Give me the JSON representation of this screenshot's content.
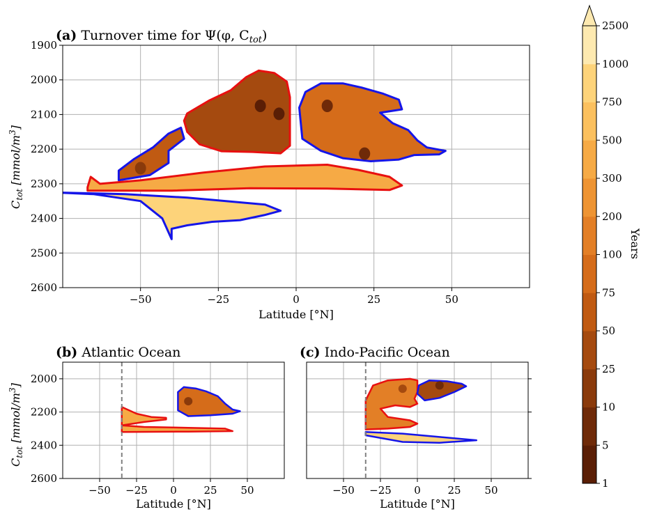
{
  "colors": {
    "c1": "#5a1e05",
    "c2": "#6f2a08",
    "c3": "#8a3a0b",
    "c4": "#a54a0f",
    "c5": "#c05a12",
    "c6": "#d56c1a",
    "c7": "#e37f26",
    "c8": "#ee9433",
    "c9": "#f6aa45",
    "c10": "#fbc05e",
    "c11": "#fdd37a",
    "c12": "#fde9b0",
    "blue": "#1515e8",
    "red": "#e81010",
    "dash": "#808080"
  },
  "colorbar": {
    "label": "Years",
    "ticks": [
      "1",
      "5",
      "10",
      "25",
      "50",
      "75",
      "100",
      "200",
      "300",
      "500",
      "750",
      "1000",
      "2500"
    ]
  },
  "chart_data": [
    {
      "type": "heatmap",
      "panel": "a",
      "title_prefix": "(a)",
      "title_text": "Turnover time for Ψ(φ, C",
      "title_sub": "tot",
      "title_end": ")",
      "xlabel": "Latitude [°N]",
      "ylabel_main": "C",
      "ylabel_sub": "tot",
      "ylabel_unit": " [mmol/m",
      "ylabel_sup": "3",
      "ylabel_end": "]",
      "xlim": [
        -75,
        75
      ],
      "ylim": [
        1900,
        2600
      ],
      "xticks": [
        -50,
        -25,
        0,
        25,
        50
      ],
      "xtick_labels": [
        "−50",
        "−25",
        "0",
        "25",
        "50"
      ],
      "yticks": [
        1900,
        2000,
        2100,
        2200,
        2300,
        2400,
        2500,
        2600
      ],
      "ytick_labels": [
        "1900",
        "2000",
        "2100",
        "2200",
        "2300",
        "2400",
        "2500",
        "2600"
      ],
      "regions": [
        {
          "name": "southern-hemisphere-cell",
          "outline": "red",
          "level": 4,
          "boundary": [
            [
              -35,
              2097
            ],
            [
              -28,
              2060
            ],
            [
              -21,
              2030
            ],
            [
              -16,
              1992
            ],
            [
              -12,
              1973
            ],
            [
              -7,
              1980
            ],
            [
              -3,
              2005
            ],
            [
              -2,
              2050
            ],
            [
              -2,
              2130
            ],
            [
              -2,
              2190
            ],
            [
              -5,
              2212
            ],
            [
              -14,
              2208
            ],
            [
              -24,
              2206
            ],
            [
              -31,
              2186
            ],
            [
              -35,
              2150
            ],
            [
              -36,
              2118
            ]
          ],
          "cores": [
            {
              "lat": -11.5,
              "c": 2075,
              "level": 1
            },
            {
              "lat": -5.5,
              "c": 2098,
              "level": 1
            }
          ]
        },
        {
          "name": "northern-hemisphere-cell",
          "outline": "blue",
          "level": 6,
          "boundary": [
            [
              1,
              2080
            ],
            [
              3,
              2035
            ],
            [
              8,
              2010
            ],
            [
              15,
              2010
            ],
            [
              21,
              2022
            ],
            [
              28,
              2040
            ],
            [
              33,
              2057
            ],
            [
              34,
              2085
            ],
            [
              27,
              2095
            ],
            [
              31,
              2125
            ],
            [
              36,
              2145
            ],
            [
              39,
              2175
            ],
            [
              42,
              2195
            ],
            [
              48,
              2205
            ],
            [
              46,
              2215
            ],
            [
              38,
              2217
            ],
            [
              33,
              2230
            ],
            [
              24,
              2235
            ],
            [
              15,
              2226
            ],
            [
              8,
              2205
            ],
            [
              2,
              2170
            ]
          ],
          "cores": [
            {
              "lat": 10,
              "c": 2075,
              "level": 2
            },
            {
              "lat": 22,
              "c": 2213,
              "level": 2
            }
          ]
        },
        {
          "name": "southern-intermediate-cell",
          "outline": "blue",
          "level": 5,
          "boundary": [
            [
              -57,
              2262
            ],
            [
              -52,
              2228
            ],
            [
              -46,
              2195
            ],
            [
              -41,
              2155
            ],
            [
              -37,
              2138
            ],
            [
              -36,
              2170
            ],
            [
              -41,
              2205
            ],
            [
              -41,
              2240
            ],
            [
              -47,
              2275
            ],
            [
              -57,
              2290
            ]
          ],
          "cores": [
            {
              "lat": -50,
              "c": 2255,
              "level": 3
            }
          ]
        },
        {
          "name": "subtropical-shallow-cell",
          "outline": "red",
          "level": 9,
          "boundary": [
            [
              -67,
              2310
            ],
            [
              -66,
              2280
            ],
            [
              -63,
              2300
            ],
            [
              -50,
              2290
            ],
            [
              -30,
              2268
            ],
            [
              -10,
              2250
            ],
            [
              10,
              2245
            ],
            [
              20,
              2260
            ],
            [
              30,
              2280
            ],
            [
              34,
              2305
            ],
            [
              30,
              2318
            ],
            [
              10,
              2314
            ],
            [
              -15,
              2313
            ],
            [
              -40,
              2320
            ],
            [
              -67,
              2320
            ]
          ]
        },
        {
          "name": "deep-return-cell",
          "outline": "blue",
          "level": 11,
          "boundary": [
            [
              -78,
              2325
            ],
            [
              -55,
              2330
            ],
            [
              -35,
              2340
            ],
            [
              -10,
              2360
            ],
            [
              -5,
              2378
            ],
            [
              -10,
              2390
            ],
            [
              -18,
              2405
            ],
            [
              -27,
              2410
            ],
            [
              -35,
              2420
            ],
            [
              -40,
              2430
            ],
            [
              -40,
              2460
            ],
            [
              -43,
              2400
            ],
            [
              -50,
              2350
            ],
            [
              -65,
              2330
            ]
          ]
        }
      ]
    },
    {
      "type": "heatmap",
      "panel": "b",
      "title_prefix": "(b)",
      "title_text": "Atlantic Ocean",
      "xlabel": "Latitude [°N]",
      "ylabel_main": "C",
      "ylabel_sub": "tot",
      "ylabel_unit": " [mmol/m",
      "ylabel_sup": "3",
      "ylabel_end": "]",
      "xlim": [
        -75,
        75
      ],
      "ylim": [
        1900,
        2600
      ],
      "xticks": [
        -50,
        -25,
        0,
        25,
        50
      ],
      "xtick_labels": [
        "−50",
        "−25",
        "0",
        "25",
        "50"
      ],
      "yticks": [
        2000,
        2200,
        2400,
        2600
      ],
      "ytick_labels": [
        "2000",
        "2200",
        "2400",
        "2600"
      ],
      "dashed_lat": -35,
      "regions": [
        {
          "name": "atlantic-north-cell",
          "outline": "blue",
          "level": 6,
          "boundary": [
            [
              3,
              2080
            ],
            [
              7,
              2050
            ],
            [
              15,
              2058
            ],
            [
              22,
              2075
            ],
            [
              30,
              2105
            ],
            [
              35,
              2150
            ],
            [
              40,
              2185
            ],
            [
              45,
              2195
            ],
            [
              40,
              2210
            ],
            [
              25,
              2220
            ],
            [
              10,
              2225
            ],
            [
              3,
              2190
            ]
          ],
          "cores": [
            {
              "lat": 10,
              "c": 2135,
              "level": 3
            }
          ]
        },
        {
          "name": "atlantic-shallow-cell",
          "outline": "red",
          "level": 9,
          "boundary": [
            [
              -35,
              2170
            ],
            [
              -25,
              2210
            ],
            [
              -15,
              2230
            ],
            [
              -5,
              2235
            ],
            [
              -5,
              2245
            ],
            [
              -20,
              2260
            ],
            [
              -35,
              2280
            ],
            [
              -20,
              2290
            ],
            [
              10,
              2295
            ],
            [
              35,
              2300
            ],
            [
              40,
              2315
            ],
            [
              10,
              2318
            ],
            [
              -35,
              2320
            ]
          ]
        }
      ]
    },
    {
      "type": "heatmap",
      "panel": "c",
      "title_prefix": "(c)",
      "title_text": "Indo-Pacific Ocean",
      "xlabel": "Latitude [°N]",
      "xlim": [
        -75,
        75
      ],
      "ylim": [
        1900,
        2600
      ],
      "xticks": [
        -50,
        -25,
        0,
        25,
        50
      ],
      "xtick_labels": [
        "−50",
        "−25",
        "0",
        "25",
        "50"
      ],
      "yticks": [
        2000,
        2200,
        2400,
        2600
      ],
      "dashed_lat": -35,
      "regions": [
        {
          "name": "indopacific-south-cell",
          "outline": "red",
          "level": 7,
          "boundary": [
            [
              -35,
              2130
            ],
            [
              -30,
              2040
            ],
            [
              -20,
              2010
            ],
            [
              -5,
              2000
            ],
            [
              0,
              2010
            ],
            [
              0,
              2080
            ],
            [
              -2,
              2120
            ],
            [
              0,
              2150
            ],
            [
              -5,
              2170
            ],
            [
              -15,
              2160
            ],
            [
              -25,
              2180
            ],
            [
              -20,
              2230
            ],
            [
              -5,
              2250
            ],
            [
              0,
              2270
            ],
            [
              -5,
              2290
            ],
            [
              -20,
              2300
            ],
            [
              -35,
              2305
            ]
          ],
          "cores": [
            {
              "lat": -10,
              "c": 2060,
              "level": 4
            }
          ]
        },
        {
          "name": "indopacific-north-cell",
          "outline": "blue",
          "level": 4,
          "boundary": [
            [
              1,
              2040
            ],
            [
              8,
              2010
            ],
            [
              20,
              2015
            ],
            [
              30,
              2030
            ],
            [
              33,
              2045
            ],
            [
              25,
              2080
            ],
            [
              15,
              2115
            ],
            [
              5,
              2130
            ],
            [
              0,
              2090
            ]
          ],
          "cores": [
            {
              "lat": 15,
              "c": 2040,
              "level": 2
            }
          ]
        },
        {
          "name": "indopacific-deep-cell",
          "outline": "blue",
          "level": 11,
          "boundary": [
            [
              -35,
              2320
            ],
            [
              -10,
              2330
            ],
            [
              15,
              2350
            ],
            [
              40,
              2370
            ],
            [
              15,
              2385
            ],
            [
              -10,
              2380
            ],
            [
              -35,
              2340
            ]
          ]
        }
      ]
    }
  ]
}
